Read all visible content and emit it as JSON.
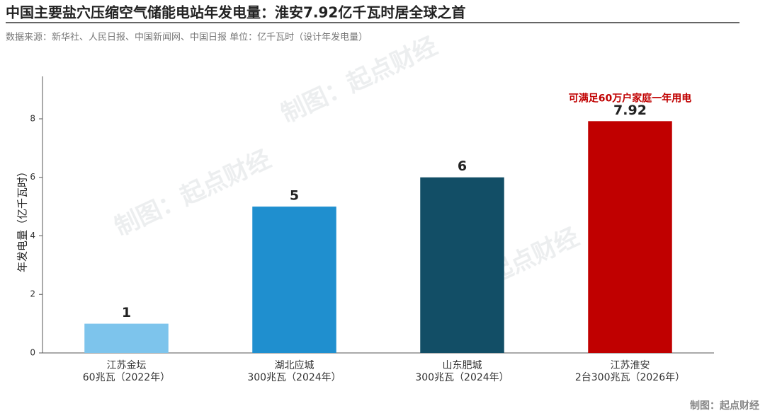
{
  "chart_data": {
    "type": "bar",
    "title": "中国主要盐穴压缩空气储能电站年发电量：淮安7.92亿千瓦时居全球之首",
    "subtitle": "数据来源：新华社、人民日报、中国新闻网、中国日报  单位：亿千瓦时（设计年发电量）",
    "y_label": "年发电量（亿千瓦时）",
    "categories": [
      [
        "江苏金坛",
        "60兆瓦（2022年）"
      ],
      [
        "湖北应城",
        "300兆瓦（2024年）"
      ],
      [
        "山东肥城",
        "300兆瓦（2024年）"
      ],
      [
        "江苏淮安",
        "2台300兆瓦（2026年）"
      ]
    ],
    "values": [
      1,
      5,
      6,
      7.92
    ],
    "colors": [
      "#7dc4ec",
      "#1f8fcf",
      "#124e66",
      "#c00000"
    ],
    "ylim": [
      0,
      9.45
    ],
    "yticks": [
      0,
      2,
      4,
      6,
      8
    ],
    "grid": false,
    "annotation": "可满足60万户家庭一年用电",
    "watermark": "制图：起点财经",
    "credit": "制图：起点财经"
  }
}
